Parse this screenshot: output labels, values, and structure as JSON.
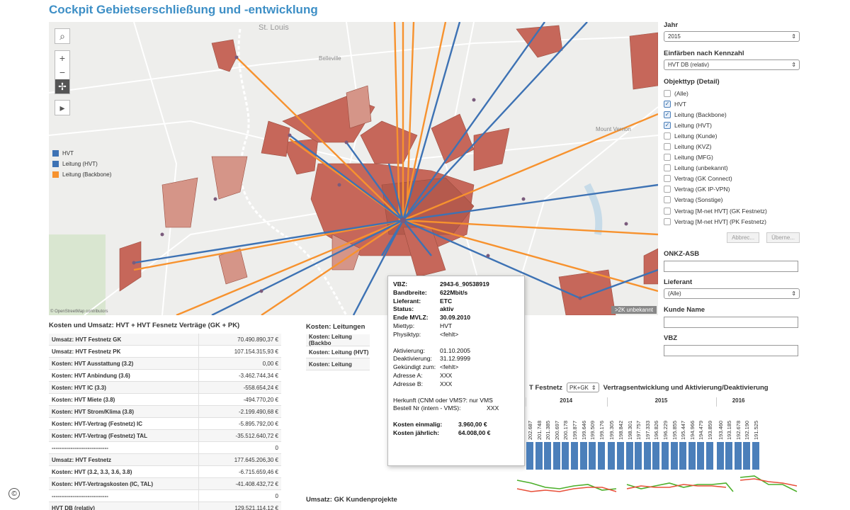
{
  "title": "Cockpit Gebietserschließung und -entwicklung",
  "map": {
    "legend": [
      {
        "label": "HVT",
        "color": "#3d72b4"
      },
      {
        "label": "Leitung (HVT)",
        "color": "#3d72b4"
      },
      {
        "label": "Leitung (Backbone)",
        "color": "#f7922e"
      }
    ],
    "places": {
      "stlouis": "St. Louis",
      "belleville": "Belleville",
      "mountvernon": "Mount Vernon"
    },
    "attribution": "© OpenStreetMap contributors",
    "badge": ">2K unbekannt",
    "controls": {
      "search": "⌕",
      "zoom_in": "+",
      "zoom_out": "−",
      "pin": "✢",
      "play": "▸"
    }
  },
  "filters": {
    "jahr_label": "Jahr",
    "jahr_value": "2015",
    "kennzahl_label": "Einfärben nach Kennzahl",
    "kennzahl_value": "HVT DB (relativ)",
    "objekttyp_label": "Objekttyp (Detail)",
    "objekttyp": [
      {
        "label": "(Alle)",
        "checked": false
      },
      {
        "label": "HVT",
        "checked": true
      },
      {
        "label": "Leitung (Backbone)",
        "checked": true
      },
      {
        "label": "Leitung (HVT)",
        "checked": true
      },
      {
        "label": "Leitung (Kunde)",
        "checked": false
      },
      {
        "label": "Leitung (KVZ)",
        "checked": false
      },
      {
        "label": "Leitung (MFG)",
        "checked": false
      },
      {
        "label": "Leitung (unbekannt)",
        "checked": false
      },
      {
        "label": "Vertrag (GK Connect)",
        "checked": false
      },
      {
        "label": "Vertrag (GK IP-VPN)",
        "checked": false
      },
      {
        "label": "Vertrag (Sonstige)",
        "checked": false
      },
      {
        "label": "Vertrag [M-net HVT] (GK Festnetz)",
        "checked": false
      },
      {
        "label": "Vertrag [M-net HVT] (PK Festnetz)",
        "checked": false
      }
    ],
    "cancel_label": "Abbrec...",
    "apply_label": "Überne...",
    "onkz_label": "ONKZ-ASB",
    "lieferant_label": "Lieferant",
    "lieferant_value": "(Alle)",
    "kunde_label": "Kunde Name",
    "vbz_label": "VBZ"
  },
  "costs_table": {
    "title": "Kosten und Umsatz: HVT + HVT Fesnetz Verträge (GK + PK)",
    "rows": [
      {
        "label": "Umsatz: HVT Festnetz GK",
        "value": "70.490.890,37 €"
      },
      {
        "label": "Umsatz: HVT Festnetz PK",
        "value": "107.154.315,93 €"
      },
      {
        "label": "Kosten: HVT Ausstattung (3.2)",
        "value": "0,00 €"
      },
      {
        "label": "Kosten: HVT Anbindung (3.6)",
        "value": "-3.462.744,34 €"
      },
      {
        "label": "Kosten: HVT IC (3.3)",
        "value": "-558.654,24 €"
      },
      {
        "label": "Kosten: HVT Miete (3.8)",
        "value": "-494.770,20 €"
      },
      {
        "label": "Kosten: HVT Strom/Klima (3.8)",
        "value": "-2.199.490,68 €"
      },
      {
        "label": "Kosten: HVT-Vertrag (Festnetz) IC",
        "value": "-5.895.792,00 €"
      },
      {
        "label": "Kosten: HVT-Vertrag (Festnetz) TAL",
        "value": "-35.512.640,72 €"
      },
      {
        "label": "------------------------------",
        "value": "0"
      },
      {
        "label": "Umsatz: HVT Festnetz",
        "value": "177.645.206,30 €"
      },
      {
        "label": "Kosten: HVT (3.2, 3.3, 3.6, 3.8)",
        "value": "-6.715.659,46 €"
      },
      {
        "label": "Kosten: HVT-Vertragskosten (IC, TAL)",
        "value": "-41.408.432,72 €"
      },
      {
        "label": "------------------------------",
        "value": "0"
      },
      {
        "label": "HVT DB (relativ)",
        "value": "129.521.114,12 €"
      }
    ]
  },
  "leitungen_table": {
    "title": "Kosten: Leitungen",
    "rows": [
      {
        "label": "Kosten: Leitung (Backbo"
      },
      {
        "label": "Kosten: Leitung (HVT)"
      },
      {
        "label": "Kosten: Leitung"
      }
    ]
  },
  "tooltip": {
    "bold_rows": [
      {
        "k": "VBZ:",
        "v": "2943-6_90538919"
      },
      {
        "k": "Bandbreite:",
        "v": "622Mbit/s"
      },
      {
        "k": "Lieferant:",
        "v": "ETC"
      },
      {
        "k": "Status:",
        "v": "aktiv"
      },
      {
        "k": "Ende MVLZ:",
        "v": "30.09.2010"
      }
    ],
    "rows1": [
      {
        "k": "Miettyp:",
        "v": "HVT"
      },
      {
        "k": "Physiktyp:",
        "v": "<fehlt>"
      }
    ],
    "rows2": [
      {
        "k": "Aktivierung:",
        "v": "01.10.2005"
      },
      {
        "k": "Deaktivierung:",
        "v": "31.12.9999"
      },
      {
        "k": "Gekündigt zum:",
        "v": "<fehlt>"
      },
      {
        "k": "Adresse A:",
        "v": "XXX"
      },
      {
        "k": "Adresse B:",
        "v": "XXX"
      }
    ],
    "herkunft": "Herkunft (CNM oder VMS?: nur VMS",
    "bestell": {
      "k": "Bestell Nr (intern - VMS):",
      "v": "XXX"
    },
    "kosten_einmalig": {
      "k": "Kosten einmalig:",
      "v": "3.960,00 €"
    },
    "kosten_jaehrlich": {
      "k": "Kosten jährlich:",
      "v": "64.008,00 €"
    }
  },
  "trend_chart": {
    "title_prefix": "T Festnetz",
    "selector": "PK+GK",
    "title_suffix": "Vertragsentwicklung und Aktivierung/Deaktivierung",
    "years": [
      "2014",
      "2015",
      "2016"
    ]
  },
  "chart_data": {
    "type": "bar",
    "title": "Vertragsentwicklung und Aktivierung/Deaktivierung",
    "groups": [
      {
        "year": "2014",
        "values": [
          202687,
          201748,
          201385,
          200697,
          200178,
          199877,
          199646,
          199509,
          199176
        ]
      },
      {
        "year": "2015",
        "values": [
          199305,
          198842,
          198301,
          197757,
          197333,
          196826,
          196229,
          195855,
          195447,
          194966,
          194479,
          193859
        ]
      },
      {
        "year": "2016",
        "values": [
          193460,
          193185,
          192678,
          192190,
          191525
        ]
      }
    ]
  },
  "umsatz_title": "Umsatz: GK Kundenprojekte",
  "copyright": "©"
}
